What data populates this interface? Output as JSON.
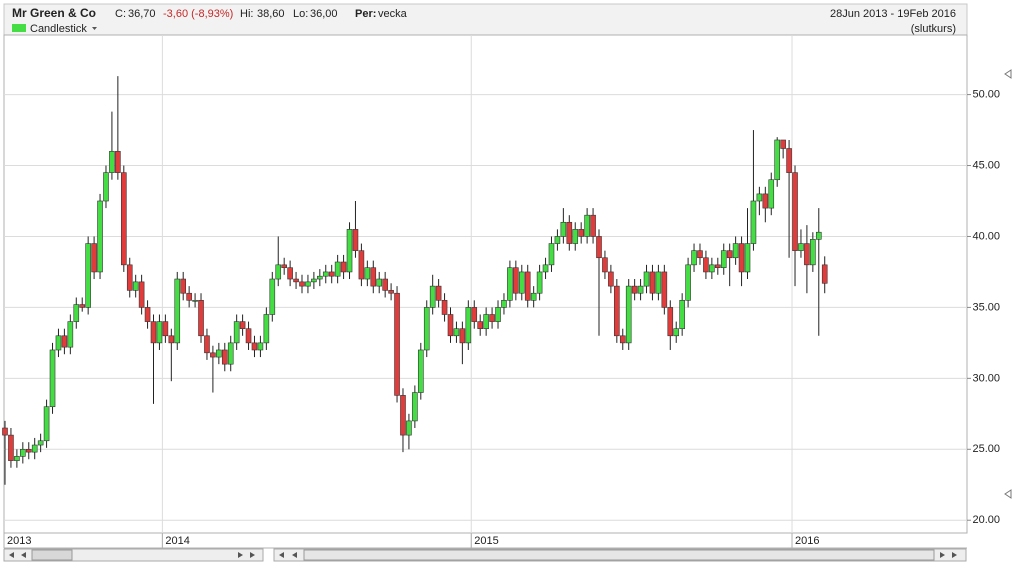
{
  "chart_data": {
    "type": "candlestick",
    "title": "Mr Green & Co",
    "header": {
      "close_label": "C:",
      "close": "36,70",
      "change": "-3,60 (-8,93%)",
      "high_label": "Hi:",
      "high": "38,60",
      "low_label": "Lo:",
      "low": "36,00",
      "period_label": "Per:",
      "period": "vecka",
      "date_range": "28Jun 2013 - 19Feb 2016",
      "price_basis": "(slutkurs)"
    },
    "legend": "Candlestick",
    "up_color": "#44dd44",
    "down_color": "#e03c3c",
    "grid": true,
    "ylim": [
      19.1,
      54.2
    ],
    "yticks": [
      {
        "value": 20,
        "label": "20.00"
      },
      {
        "value": 25,
        "label": "25.00"
      },
      {
        "value": 30,
        "label": "30.00"
      },
      {
        "value": 35,
        "label": "35.00"
      },
      {
        "value": 40,
        "label": "40.00"
      },
      {
        "value": 45,
        "label": "45.00"
      },
      {
        "value": 50,
        "label": "50.00"
      }
    ],
    "categories": [
      "2013",
      null,
      null,
      null,
      null,
      null,
      null,
      null,
      null,
      null,
      null,
      null,
      null,
      null,
      null,
      null,
      null,
      null,
      null,
      null,
      null,
      null,
      null,
      null,
      null,
      null,
      null,
      "2014",
      null,
      null,
      null,
      null,
      null,
      null,
      null,
      null,
      null,
      null,
      null,
      null,
      null,
      null,
      null,
      null,
      null,
      null,
      null,
      null,
      null,
      null,
      null,
      null,
      null,
      null,
      null,
      null,
      null,
      null,
      null,
      null,
      null,
      null,
      null,
      null,
      null,
      null,
      null,
      null,
      null,
      null,
      null,
      null,
      null,
      null,
      null,
      null,
      null,
      null,
      null,
      "2015",
      null,
      null,
      null,
      null,
      null,
      null,
      null,
      null,
      null,
      null,
      null,
      null,
      null,
      null,
      null,
      null,
      null,
      null,
      null,
      null,
      null,
      null,
      null,
      null,
      null,
      null,
      null,
      null,
      null,
      null,
      null,
      null,
      null,
      null,
      null,
      null,
      null,
      null,
      null,
      null,
      null,
      null,
      null,
      null,
      null,
      null,
      null,
      null,
      null,
      null,
      null,
      null,
      null,
      "2016",
      null,
      null,
      null,
      null,
      null,
      null
    ],
    "opens": [
      26.5,
      26.0,
      24.2,
      24.5,
      25.0,
      24.8,
      25.3,
      25.6,
      28.0,
      32.0,
      33.0,
      32.2,
      34.0,
      35.2,
      35.0,
      39.5,
      37.5,
      42.5,
      44.5,
      46.0,
      44.5,
      38.0,
      36.2,
      36.8,
      35.0,
      34.0,
      32.5,
      34.0,
      33.0,
      32.5,
      37.0,
      36.0,
      35.5,
      35.5,
      33.0,
      31.8,
      31.5,
      32.0,
      31.0,
      32.5,
      34.0,
      33.5,
      32.5,
      32.0,
      32.5,
      34.5,
      37.0,
      38.0,
      37.8,
      37.0,
      36.8,
      36.5,
      36.8,
      37.0,
      37.2,
      37.5,
      37.2,
      38.2,
      37.5,
      40.5,
      39.0,
      37.0,
      37.8,
      36.5,
      37.0,
      36.2,
      36.0,
      28.8,
      26.0,
      27.0,
      29.0,
      32.0,
      35.0,
      36.5,
      35.5,
      34.5,
      33.0,
      33.5,
      32.5,
      35.0,
      34.0,
      33.5,
      34.5,
      34.0,
      35.0,
      35.5,
      37.8,
      36.0,
      37.5,
      35.5,
      36.0,
      37.5,
      38.0,
      39.5,
      40.0,
      41.0,
      39.5,
      40.5,
      40.0,
      41.5,
      40.0,
      38.5,
      37.5,
      36.5,
      33.0,
      32.5,
      36.5,
      36.0,
      36.5,
      37.5,
      36.0,
      37.5,
      35.0,
      33.0,
      33.5,
      35.5,
      38.0,
      39.0,
      38.5,
      37.5,
      38.0,
      37.8,
      39.0,
      38.5,
      39.5,
      37.5,
      39.5,
      42.5,
      43.0,
      42.0,
      44.0,
      46.8,
      46.2,
      44.5,
      39.0,
      39.5,
      38.0,
      39.8,
      38.0
    ],
    "highs": [
      27.0,
      26.5,
      25.0,
      25.5,
      25.5,
      25.8,
      26.1,
      28.5,
      32.5,
      33.5,
      33.5,
      34.5,
      35.7,
      35.7,
      40.0,
      40.0,
      43.0,
      45.0,
      48.8,
      51.3,
      45.0,
      38.5,
      37.3,
      37.3,
      35.5,
      34.5,
      34.5,
      34.5,
      33.5,
      37.5,
      37.5,
      36.5,
      36.0,
      36.0,
      33.5,
      32.3,
      32.5,
      32.5,
      33.0,
      34.5,
      34.5,
      34.0,
      33.0,
      33.0,
      35.0,
      37.5,
      40.0,
      38.5,
      38.3,
      37.5,
      37.3,
      37.3,
      37.5,
      37.7,
      38.0,
      38.0,
      38.7,
      38.7,
      41.0,
      42.5,
      39.5,
      38.3,
      38.3,
      37.5,
      37.5,
      36.7,
      36.5,
      29.3,
      27.5,
      29.5,
      32.5,
      35.5,
      37.3,
      37.0,
      36.0,
      35.0,
      34.0,
      34.0,
      35.5,
      35.5,
      34.5,
      35.0,
      35.0,
      35.5,
      36.0,
      38.3,
      38.3,
      38.0,
      38.0,
      36.5,
      38.0,
      38.5,
      40.0,
      40.5,
      42.0,
      41.5,
      41.0,
      41.0,
      42.0,
      42.0,
      40.5,
      39.0,
      38.0,
      37.0,
      33.5,
      37.0,
      37.0,
      37.0,
      38.0,
      38.0,
      38.0,
      38.0,
      35.5,
      34.0,
      36.0,
      38.5,
      39.5,
      39.5,
      39.0,
      38.5,
      38.5,
      39.5,
      39.5,
      40.0,
      40.0,
      42.0,
      47.5,
      43.5,
      43.5,
      44.5,
      47.0,
      46.8,
      46.8,
      45.0,
      40.5,
      40.8,
      40.3,
      42.0,
      38.6
    ],
    "lows": [
      22.5,
      23.7,
      23.7,
      24.0,
      24.3,
      24.3,
      24.8,
      25.1,
      27.5,
      31.5,
      31.7,
      31.7,
      33.5,
      34.7,
      34.5,
      37.0,
      37.0,
      42.0,
      44.0,
      44.0,
      37.5,
      35.7,
      35.7,
      34.5,
      33.5,
      28.2,
      32.0,
      32.5,
      29.8,
      32.0,
      35.5,
      35.0,
      35.0,
      32.5,
      31.3,
      29.0,
      31.0,
      30.5,
      30.5,
      32.0,
      33.0,
      32.0,
      31.5,
      31.5,
      32.0,
      34.0,
      36.5,
      37.3,
      36.5,
      36.3,
      36.0,
      36.0,
      36.3,
      36.5,
      36.7,
      36.7,
      36.7,
      37.0,
      37.0,
      38.5,
      36.5,
      36.5,
      36.0,
      36.0,
      35.7,
      35.5,
      28.3,
      24.8,
      25.0,
      26.5,
      28.5,
      31.5,
      34.5,
      35.0,
      34.0,
      32.5,
      32.5,
      31.0,
      32.0,
      33.5,
      33.0,
      33.0,
      33.5,
      33.5,
      34.5,
      35.0,
      35.5,
      35.5,
      35.0,
      35.0,
      35.5,
      37.0,
      37.5,
      39.0,
      39.5,
      39.0,
      39.0,
      39.5,
      39.5,
      39.5,
      33.0,
      37.0,
      36.0,
      32.5,
      32.0,
      32.0,
      35.5,
      35.5,
      36.0,
      35.5,
      35.5,
      34.5,
      32.0,
      32.5,
      33.0,
      35.0,
      37.5,
      38.0,
      37.0,
      37.0,
      37.3,
      37.3,
      36.5,
      38.0,
      36.5,
      37.0,
      39.0,
      41.5,
      41.0,
      41.5,
      43.5,
      45.5,
      38.5,
      36.5,
      38.5,
      36.0,
      37.5,
      33.0,
      36.0
    ],
    "closes": [
      26.0,
      24.2,
      24.5,
      25.0,
      24.8,
      25.3,
      25.6,
      28.0,
      32.0,
      33.0,
      32.2,
      34.0,
      35.2,
      35.0,
      39.5,
      37.5,
      42.5,
      44.5,
      46.0,
      44.5,
      38.0,
      36.2,
      36.8,
      35.0,
      34.0,
      32.5,
      34.0,
      33.0,
      32.5,
      37.0,
      36.0,
      35.5,
      35.5,
      33.0,
      31.8,
      31.5,
      32.0,
      31.0,
      32.5,
      34.0,
      33.5,
      32.5,
      32.0,
      32.5,
      34.5,
      37.0,
      38.0,
      37.8,
      37.0,
      36.8,
      36.5,
      36.8,
      37.0,
      37.2,
      37.5,
      37.2,
      38.2,
      37.5,
      40.5,
      39.0,
      37.0,
      37.8,
      36.5,
      37.0,
      36.2,
      36.0,
      28.8,
      26.0,
      27.0,
      29.0,
      32.0,
      35.0,
      36.5,
      35.5,
      34.5,
      33.0,
      33.5,
      32.5,
      35.0,
      34.0,
      33.5,
      34.5,
      34.0,
      35.0,
      35.5,
      37.8,
      36.0,
      37.5,
      35.5,
      36.0,
      37.5,
      38.0,
      39.5,
      40.0,
      41.0,
      39.5,
      40.5,
      40.0,
      41.5,
      40.0,
      38.5,
      37.5,
      36.5,
      33.0,
      32.5,
      36.5,
      36.0,
      36.5,
      37.5,
      36.0,
      37.5,
      35.0,
      33.0,
      33.5,
      35.5,
      38.0,
      39.0,
      38.5,
      37.5,
      38.0,
      37.8,
      39.0,
      38.5,
      39.5,
      37.5,
      39.5,
      42.5,
      43.0,
      42.0,
      44.0,
      46.8,
      46.2,
      44.5,
      39.0,
      39.5,
      38.0,
      39.8,
      40.3,
      36.7
    ]
  }
}
